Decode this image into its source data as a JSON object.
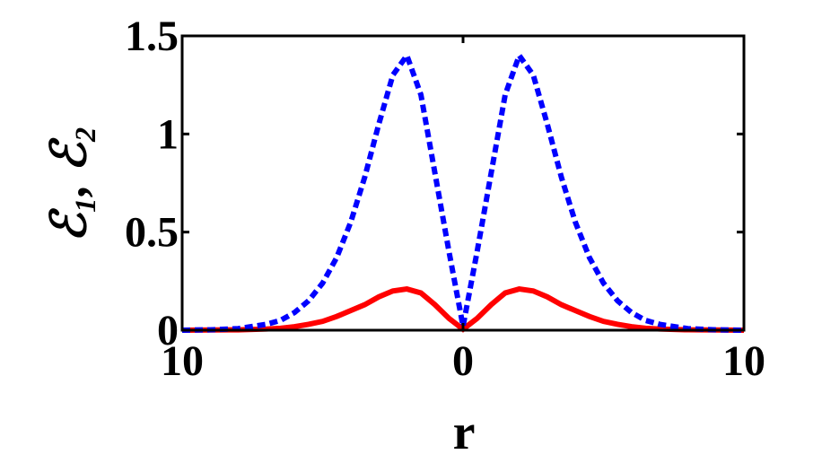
{
  "chart_data": {
    "type": "line",
    "xlabel": "r",
    "ylabel": "ℰ₁,  ℰ₂",
    "x": [
      -10,
      -9,
      -8,
      -7,
      -6.5,
      -6,
      -5.5,
      -5,
      -4.5,
      -4,
      -3.5,
      -3,
      -2.5,
      -2,
      -1.5,
      -1,
      -0.5,
      0,
      0.5,
      1,
      1.5,
      2,
      2.5,
      3,
      3.5,
      4,
      4.5,
      5,
      5.5,
      6,
      6.5,
      7,
      8,
      9,
      10
    ],
    "series": [
      {
        "color": "#ff0000",
        "style": "solid",
        "values": [
          0,
          0.001,
          0.002,
          0.006,
          0.01,
          0.018,
          0.03,
          0.045,
          0.07,
          0.1,
          0.13,
          0.17,
          0.2,
          0.21,
          0.19,
          0.13,
          0.06,
          0.005,
          0.06,
          0.13,
          0.19,
          0.21,
          0.2,
          0.17,
          0.13,
          0.1,
          0.07,
          0.045,
          0.03,
          0.018,
          0.01,
          0.006,
          0.002,
          0.001,
          0
        ]
      },
      {
        "color": "#0000ff",
        "style": "dashed",
        "values": [
          0,
          0.002,
          0.008,
          0.03,
          0.05,
          0.09,
          0.15,
          0.24,
          0.37,
          0.55,
          0.78,
          1.05,
          1.3,
          1.4,
          1.2,
          0.8,
          0.4,
          0.02,
          0.4,
          0.8,
          1.2,
          1.4,
          1.3,
          1.05,
          0.78,
          0.55,
          0.37,
          0.24,
          0.15,
          0.09,
          0.05,
          0.03,
          0.008,
          0.002,
          0
        ]
      }
    ],
    "xlim": [
      -10,
      10
    ],
    "xticks": [
      {
        "value": -10,
        "label": "10"
      },
      0,
      10
    ],
    "ylim": [
      0,
      1.5
    ],
    "yticks": [
      0,
      0.5,
      1,
      1.5
    ]
  }
}
